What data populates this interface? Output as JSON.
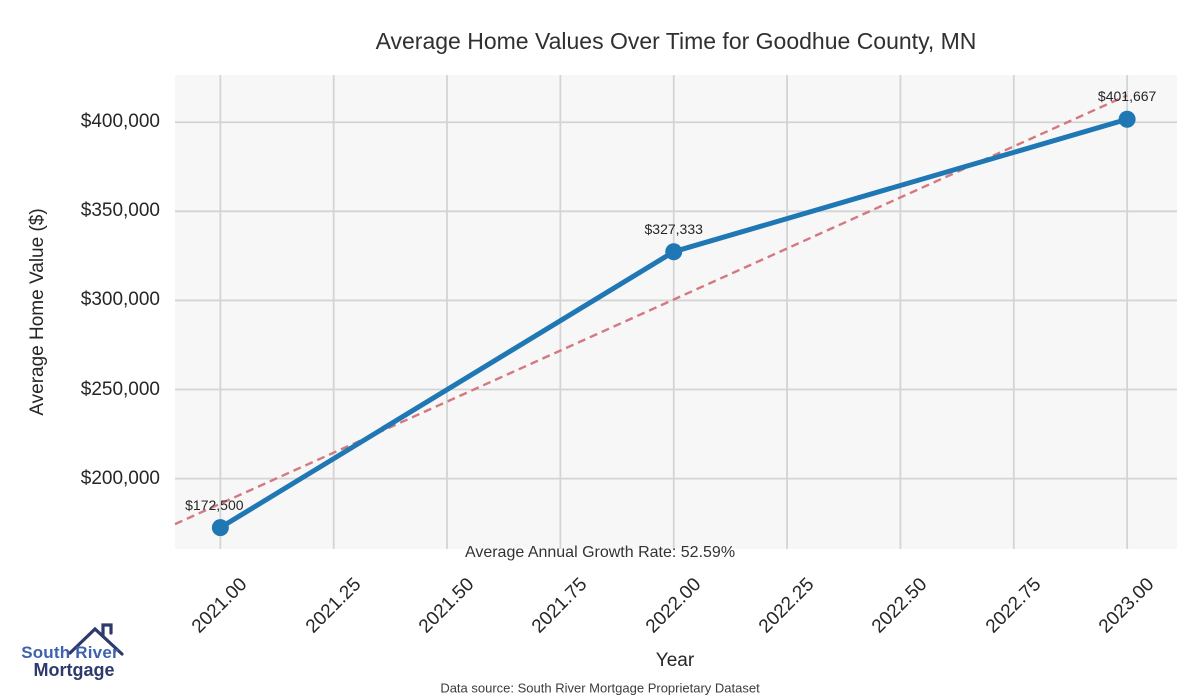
{
  "title": "Average Home Values Over Time for Goodhue County, MN",
  "chart_data": {
    "type": "line",
    "title": "Average Home Values Over Time for Goodhue County, MN",
    "xlabel": "Year",
    "ylabel": "Average Home Value ($)",
    "x": [
      2021,
      2022,
      2023
    ],
    "series": [
      {
        "name": "Average Home Value",
        "values": [
          172500,
          327333,
          401667
        ],
        "point_labels": [
          "$172,500",
          "$327,333",
          "$401,667"
        ],
        "style": "solid-line-with-markers"
      },
      {
        "name": "Linear trend",
        "derived": "least-squares-fit-of-values",
        "style": "dashed-line"
      }
    ],
    "x_tick_values": [
      2021.0,
      2021.25,
      2021.5,
      2021.75,
      2022.0,
      2022.25,
      2022.5,
      2022.75,
      2023.0
    ],
    "x_tick_labels": [
      "2021.00",
      "2021.25",
      "2021.50",
      "2021.75",
      "2022.00",
      "2022.25",
      "2022.50",
      "2022.75",
      "2023.00"
    ],
    "y_tick_values": [
      200000,
      250000,
      300000,
      350000,
      400000
    ],
    "y_tick_labels": [
      "$200,000",
      "$250,000",
      "$300,000",
      "$350,000",
      "$400,000"
    ],
    "xlim": [
      2020.9,
      2023.11
    ],
    "ylim": [
      160500,
      426500
    ],
    "grid": true,
    "legend": false,
    "annotation": "Average Annual Growth Rate: 52.59%",
    "colors": {
      "line": "#1f77b4",
      "marker": "#1f77b4",
      "trend": "#d4797f",
      "plot_background": "#f7f7f7",
      "grid": "#d4d4d4",
      "text": "#262626"
    }
  },
  "footer": {
    "source": "Data source: South River Mortgage Proprietary Dataset"
  },
  "logo": {
    "line1": "South River",
    "line2": "Mortgage",
    "color1": "#3e62ae",
    "color2": "#2d3a6b",
    "roof_color": "#2d3a6b"
  }
}
